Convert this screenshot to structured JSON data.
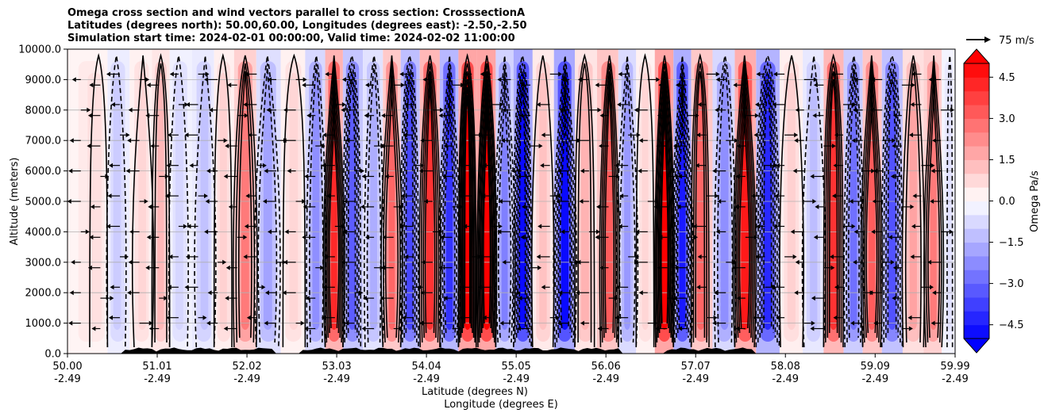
{
  "chart_data": {
    "type": "contourf",
    "title_lines": [
      "Omega cross section and wind vectors parallel to cross section: CrosssectionA",
      "Latitudes (degrees north): 50.00,60.00, Longitudes (degrees east): -2.50,-2.50",
      "Simulation start time: 2024-02-01 00:00:00, Valid time: 2024-02-02 11:00:00"
    ],
    "ylabel": "Altitude (meters)",
    "xlabel_lines": [
      "Latitude (degrees N)",
      "Longitude (degrees E)"
    ],
    "ylim": [
      0,
      10000
    ],
    "yticks": [
      "0.0",
      "1000.0",
      "2000.0",
      "3000.0",
      "4000.0",
      "5000.0",
      "6000.0",
      "7000.0",
      "8000.0",
      "9000.0",
      "10000.0"
    ],
    "xlim": [
      50.0,
      59.99
    ],
    "xticks": [
      {
        "lat": "50.00",
        "lon": "-2.49"
      },
      {
        "lat": "51.01",
        "lon": "-2.49"
      },
      {
        "lat": "52.02",
        "lon": "-2.49"
      },
      {
        "lat": "53.03",
        "lon": "-2.49"
      },
      {
        "lat": "54.04",
        "lon": "-2.49"
      },
      {
        "lat": "55.05",
        "lon": "-2.49"
      },
      {
        "lat": "56.06",
        "lon": "-2.49"
      },
      {
        "lat": "57.07",
        "lon": "-2.49"
      },
      {
        "lat": "58.08",
        "lon": "-2.49"
      },
      {
        "lat": "59.09",
        "lon": "-2.49"
      },
      {
        "lat": "59.99",
        "lon": "-2.49"
      }
    ],
    "grid": "horizontal",
    "colorbar": {
      "label": "Omega Pa/s",
      "ticks": [
        "4.5",
        "3.0",
        "1.5",
        "0.0",
        "−1.5",
        "−3.0",
        "−4.5"
      ],
      "range": [
        -5.0,
        5.0
      ],
      "colors": {
        "strong_positive": "#ff0000",
        "zero": "#ffffff",
        "strong_negative": "#0000ff"
      }
    },
    "quiver_key": "75 m/s",
    "bands": [
      {
        "lat": 50.35,
        "omega": 0.6
      },
      {
        "lat": 50.55,
        "omega": -1.0
      },
      {
        "lat": 50.85,
        "omega": 0.8
      },
      {
        "lat": 51.05,
        "omega": 1.4
      },
      {
        "lat": 51.25,
        "omega": -0.8
      },
      {
        "lat": 51.55,
        "omega": -1.2
      },
      {
        "lat": 51.75,
        "omega": 0.9
      },
      {
        "lat": 52.0,
        "omega": 2.6
      },
      {
        "lat": 52.25,
        "omega": -1.8
      },
      {
        "lat": 52.55,
        "omega": 0.8
      },
      {
        "lat": 52.8,
        "omega": -2.2
      },
      {
        "lat": 53.0,
        "omega": 4.2
      },
      {
        "lat": 53.2,
        "omega": -3.2
      },
      {
        "lat": 53.45,
        "omega": -1.6
      },
      {
        "lat": 53.65,
        "omega": 3.0
      },
      {
        "lat": 53.85,
        "omega": -3.6
      },
      {
        "lat": 54.08,
        "omega": 4.0
      },
      {
        "lat": 54.3,
        "omega": -4.0
      },
      {
        "lat": 54.5,
        "omega": 5.0
      },
      {
        "lat": 54.72,
        "omega": 5.0
      },
      {
        "lat": 54.92,
        "omega": -2.5
      },
      {
        "lat": 55.12,
        "omega": -4.8
      },
      {
        "lat": 55.35,
        "omega": 1.2
      },
      {
        "lat": 55.6,
        "omega": -4.8
      },
      {
        "lat": 55.82,
        "omega": 1.5
      },
      {
        "lat": 56.1,
        "omega": 3.2
      },
      {
        "lat": 56.3,
        "omega": -2.0
      },
      {
        "lat": 56.5,
        "omega": 0.8
      },
      {
        "lat": 56.72,
        "omega": 5.0
      },
      {
        "lat": 56.92,
        "omega": -4.5
      },
      {
        "lat": 57.12,
        "omega": 3.0
      },
      {
        "lat": 57.4,
        "omega": -2.2
      },
      {
        "lat": 57.62,
        "omega": 4.5
      },
      {
        "lat": 57.88,
        "omega": -4.2
      },
      {
        "lat": 58.15,
        "omega": 0.9
      },
      {
        "lat": 58.4,
        "omega": -1.3
      },
      {
        "lat": 58.62,
        "omega": 4.0
      },
      {
        "lat": 58.85,
        "omega": -2.8
      },
      {
        "lat": 59.05,
        "omega": 3.2
      },
      {
        "lat": 59.28,
        "omega": -3.4
      },
      {
        "lat": 59.52,
        "omega": 1.8
      },
      {
        "lat": 59.75,
        "omega": 2.6
      },
      {
        "lat": 59.93,
        "omega": -0.6
      }
    ]
  }
}
